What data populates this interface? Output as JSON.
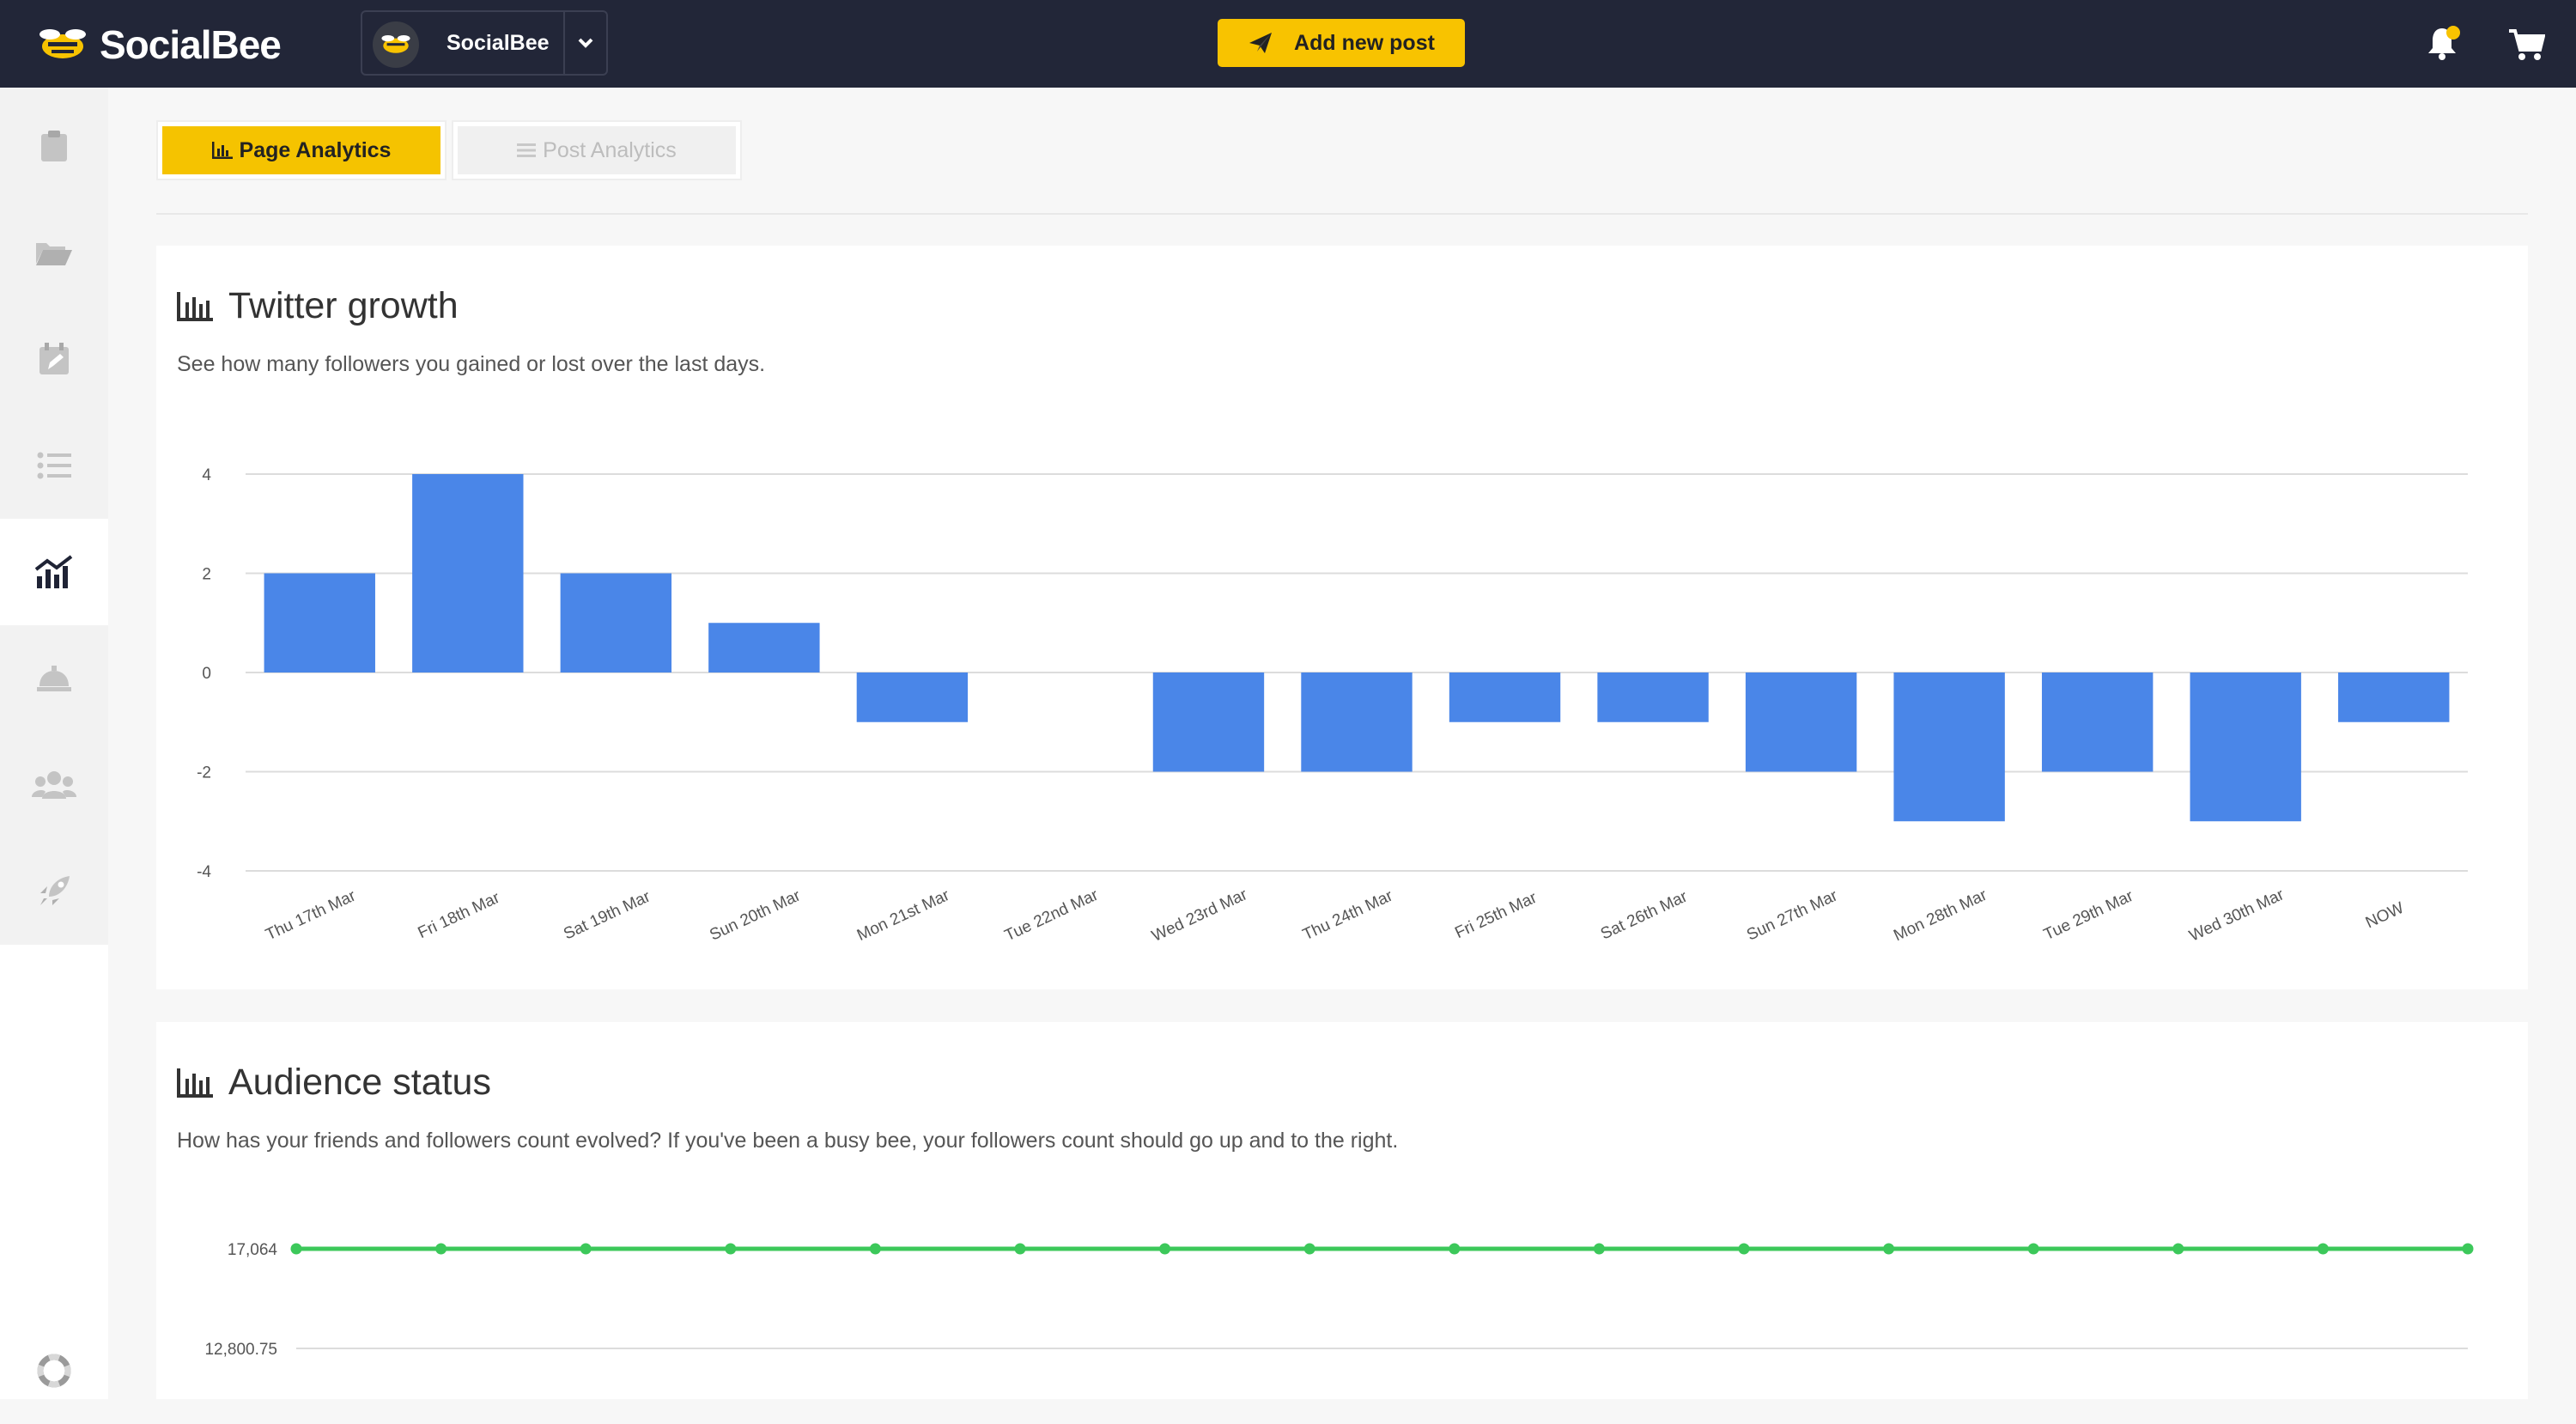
{
  "app": {
    "name": "SocialBee"
  },
  "header": {
    "account_name": "SocialBee",
    "add_post_label": "Add new post",
    "icons": [
      "paper-plane-icon",
      "bell-icon",
      "cart-icon",
      "chevron-down-icon"
    ],
    "notification_dot_color": "#f8c300"
  },
  "sidebar": {
    "items": [
      {
        "name": "clipboard",
        "icon": "clipboard-icon",
        "active": false
      },
      {
        "name": "folder",
        "icon": "folder-open-icon",
        "active": false
      },
      {
        "name": "calendar",
        "icon": "calendar-edit-icon",
        "active": false
      },
      {
        "name": "list",
        "icon": "list-icon",
        "active": false
      },
      {
        "name": "analytics",
        "icon": "analytics-chart-icon",
        "active": true
      },
      {
        "name": "concierge",
        "icon": "concierge-bell-icon",
        "active": false
      },
      {
        "name": "users",
        "icon": "users-icon",
        "active": false
      },
      {
        "name": "rocket",
        "icon": "rocket-icon",
        "active": false
      }
    ],
    "help_icon": "life-ring-icon"
  },
  "tabs": {
    "page_analytics": "Page Analytics",
    "post_analytics": "Post Analytics",
    "active": "page_analytics"
  },
  "twitter_growth": {
    "title": "Twitter growth",
    "description": "See how many followers you gained or lost over the last days."
  },
  "audience_status": {
    "title": "Audience status",
    "description": "How has your friends and followers count evolved? If you've been a busy bee, your followers count should go up and to the right."
  },
  "colors": {
    "accent": "#f8c300",
    "topbar": "#222638",
    "bar": "#4a86e8",
    "line": "#3cc85a"
  },
  "chart_data": [
    {
      "type": "bar",
      "categories": [
        "Thu 17th Mar",
        "Fri 18th Mar",
        "Sat 19th Mar",
        "Sun 20th Mar",
        "Mon 21st Mar",
        "Tue 22nd Mar",
        "Wed 23rd Mar",
        "Thu 24th Mar",
        "Fri 25th Mar",
        "Sat 26th Mar",
        "Sun 27th Mar",
        "Mon 28th Mar",
        "Tue 29th Mar",
        "Wed 30th Mar",
        "NOW"
      ],
      "values": [
        2,
        4,
        2,
        1,
        -1,
        0,
        -2,
        -2,
        -1,
        -1,
        -2,
        -3,
        -2,
        -3,
        -1
      ],
      "title": "Twitter growth",
      "ylim": [
        -4,
        4
      ],
      "yticks": [
        "4",
        "2",
        "0",
        "-2",
        "-4"
      ],
      "grid": true,
      "color": "#4a86e8"
    },
    {
      "type": "line",
      "values": [
        17064,
        17064,
        17064,
        17064,
        17064,
        17064,
        17064,
        17064,
        17064,
        17064,
        17064,
        17064,
        17064,
        17064,
        17064,
        17064
      ],
      "title": "Audience status",
      "yticks": [
        "17,064",
        "12,800.75"
      ],
      "grid": true,
      "color": "#3cc85a"
    }
  ]
}
